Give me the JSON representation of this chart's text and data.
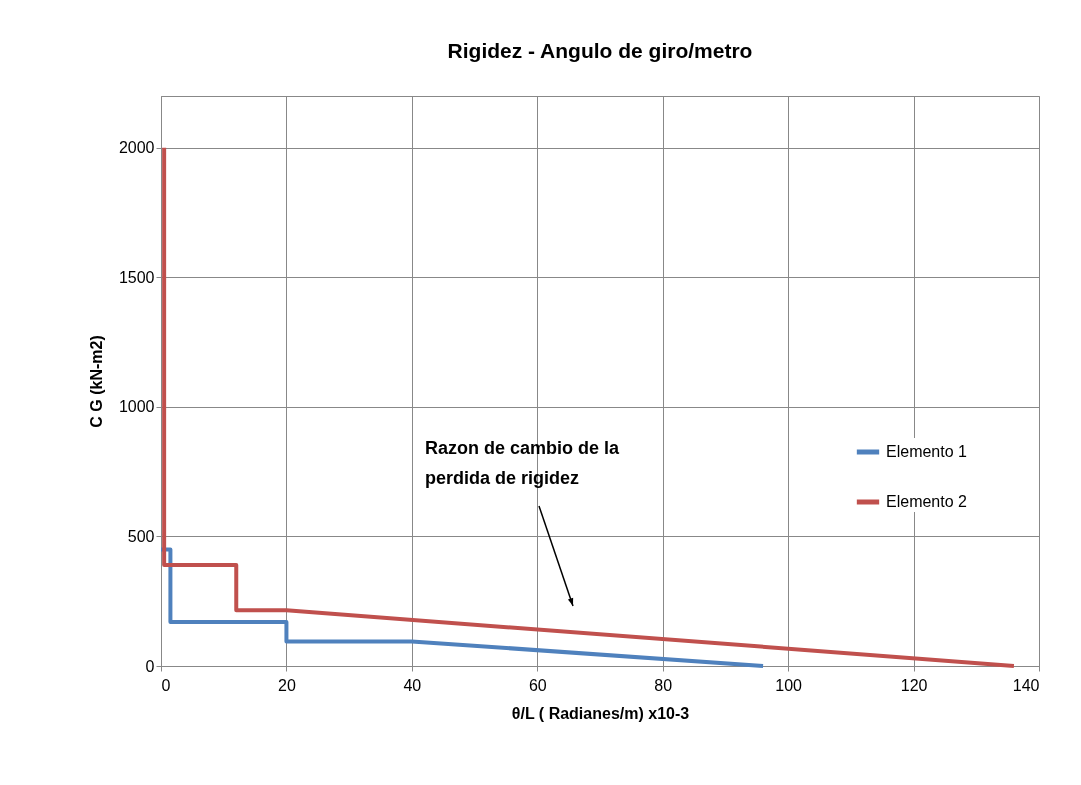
{
  "chart_data": {
    "type": "line",
    "title": "Rigidez  - Angulo de giro/metro",
    "xlabel": "θ/L  ( Radianes/m) x10-3",
    "ylabel": "C G (kN-m2)",
    "xlim": [
      0,
      140
    ],
    "xticks": [
      0,
      20,
      40,
      60,
      80,
      100,
      120,
      140
    ],
    "ylim": [
      0,
      2200
    ],
    "yticks": [
      0,
      500,
      1000,
      1500,
      2000
    ],
    "grid": true,
    "legend": "right",
    "marker": "none",
    "line_style": "solid",
    "annotations": [
      "Razon de cambio de la perdida de rigidez"
    ],
    "series": [
      {
        "name": "Elemento 1",
        "color": "#4f81bd",
        "x": [
          0,
          1.5,
          1.5,
          20,
          20,
          40,
          96
        ],
        "values": [
          450,
          450,
          170,
          170,
          95,
          95,
          0
        ]
      },
      {
        "name": "Elemento 2",
        "color": "#c0504d",
        "x": [
          0.5,
          0.5,
          12,
          12,
          20,
          136
        ],
        "values": [
          2000,
          390,
          390,
          215,
          215,
          0
        ]
      }
    ]
  }
}
